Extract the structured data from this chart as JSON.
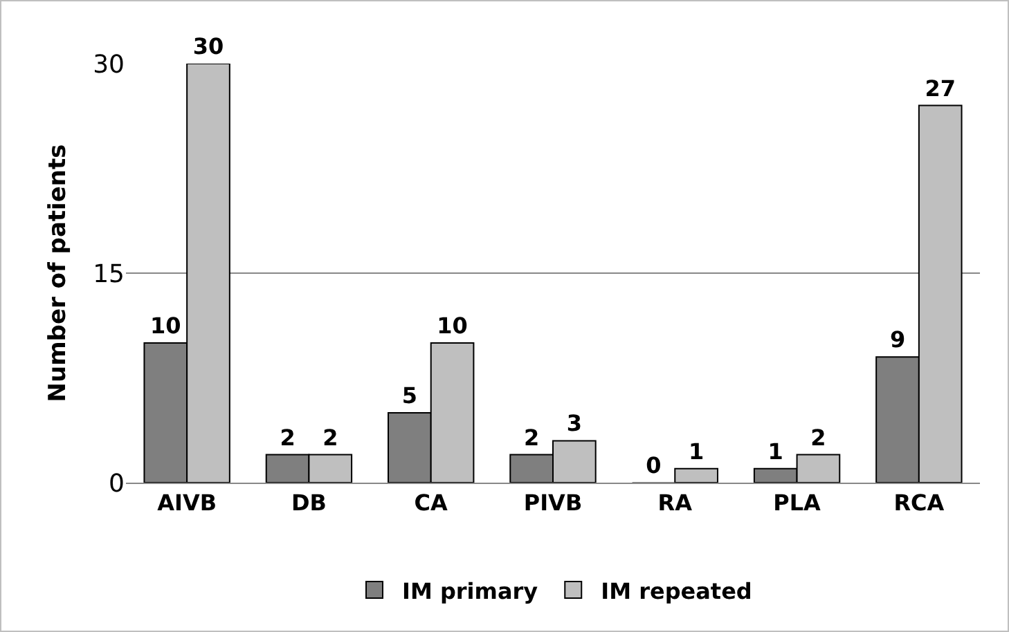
{
  "chart_data": {
    "type": "bar",
    "ylabel": "Number of patients",
    "categories": [
      "AIVB",
      "DB",
      "CA",
      "PIVB",
      "RA",
      "PLA",
      "RCA"
    ],
    "series": [
      {
        "name": "IM primary",
        "color": "#7f7f7f",
        "values": [
          10,
          2,
          5,
          2,
          0,
          1,
          9
        ]
      },
      {
        "name": "IM repeated",
        "color": "#bfbfbf",
        "values": [
          30,
          2,
          10,
          3,
          1,
          2,
          27
        ]
      }
    ],
    "ylim": [
      0,
      30
    ],
    "yticks": [
      0,
      15,
      30
    ],
    "grid": "y",
    "legend": "bottom",
    "data_labels": true
  }
}
